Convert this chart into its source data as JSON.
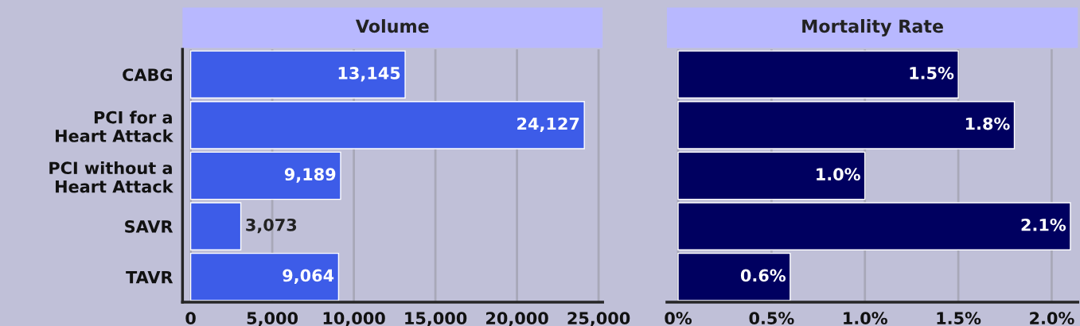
{
  "chart_data": [
    {
      "type": "bar",
      "orientation": "horizontal",
      "title": "Volume",
      "categories": [
        "CABG",
        "PCI for a\nHeart Attack",
        "PCI without a\nHeart Attack",
        "SAVR",
        "TAVR"
      ],
      "values": [
        13145,
        24127,
        9189,
        3073,
        9064
      ],
      "value_labels": [
        "13,145",
        "24,127",
        "9,189",
        "3,073",
        "9,064"
      ],
      "color": "#3d5ce8",
      "xlim": [
        -500,
        25250
      ],
      "xticks": [
        0,
        {
          "value": 5000,
          "label": "5,000"
        },
        {
          "value": 10000,
          "label": "10,000"
        },
        {
          "value": 15000,
          "label": "15,000"
        },
        {
          "value": 20000,
          "label": "20,000"
        },
        {
          "value": 25000,
          "label": "25,000"
        }
      ],
      "grid": "x"
    },
    {
      "type": "bar",
      "orientation": "horizontal",
      "title": "Mortality Rate",
      "categories": [
        null,
        null,
        null,
        null,
        null
      ],
      "values": [
        1.5,
        1.8,
        1.0,
        2.1,
        0.6
      ],
      "value_labels": [
        "1.5%",
        "1.8%",
        "1.0%",
        "2.1%",
        "0.6%"
      ],
      "color": "#000060",
      "xlim": [
        -0.06,
        2.14
      ],
      "xticks": [
        {
          "value": 0,
          "label": "0%"
        },
        {
          "value": 0.5,
          "label": "0.5%"
        },
        {
          "value": 1.0,
          "label": "1.0%"
        },
        {
          "value": 1.5,
          "label": "1.5%"
        },
        {
          "value": 2.0,
          "label": "2.0%"
        }
      ],
      "grid": "x",
      "tick_labels": "x"
    }
  ]
}
